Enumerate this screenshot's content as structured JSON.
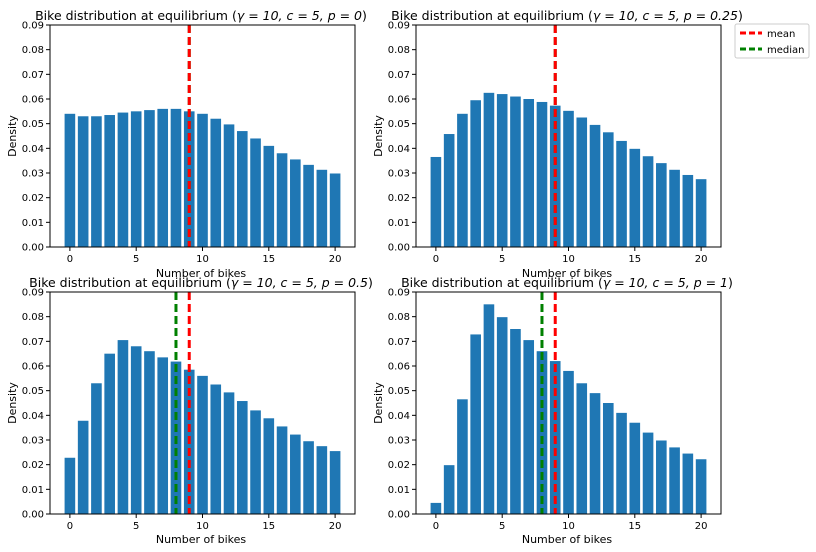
{
  "colors": {
    "bars": "#1f77b4",
    "mean": "#ff0000",
    "median": "#008000",
    "axes": "#000000"
  },
  "legend": {
    "placement": "outside-top-right",
    "items": [
      "mean",
      "median"
    ]
  },
  "chart_data": [
    {
      "type": "bar",
      "title": "Bike distribution at equilibrium ($\\gamma = 10, c = 5, p = 0$)",
      "title_prefix": "Bike distribution at equilibrium (",
      "title_math": "γ = 10, c = 5, p = 0",
      "xlabel": "Number of bikes",
      "ylabel": "Density",
      "ylim": [
        0,
        0.09
      ],
      "xlim": [
        -1.5,
        21.5
      ],
      "x_ticks": [
        0,
        5,
        10,
        15,
        20
      ],
      "y_ticks": [
        0,
        0.01,
        0.02,
        0.03,
        0.04,
        0.05,
        0.06,
        0.07,
        0.08,
        0.09
      ],
      "grid": false,
      "categories": [
        0,
        1,
        2,
        3,
        4,
        5,
        6,
        7,
        8,
        9,
        10,
        11,
        12,
        13,
        14,
        15,
        16,
        17,
        18,
        19,
        20
      ],
      "values": [
        0.054,
        0.053,
        0.053,
        0.0535,
        0.0545,
        0.055,
        0.0555,
        0.056,
        0.056,
        0.055,
        0.054,
        0.052,
        0.0497,
        0.047,
        0.044,
        0.041,
        0.038,
        0.0355,
        0.0333,
        0.0313,
        0.0298
      ],
      "mean": 9.0,
      "median": 9.0
    },
    {
      "type": "bar",
      "title": "Bike distribution at equilibrium ($\\gamma = 10, c = 5, p = 0.25$)",
      "title_prefix": "Bike distribution at equilibrium (",
      "title_math": "γ = 10, c = 5, p = 0.25",
      "xlabel": "Number of bikes",
      "ylabel": "Density",
      "ylim": [
        0,
        0.09
      ],
      "xlim": [
        -1.5,
        21.5
      ],
      "x_ticks": [
        0,
        5,
        10,
        15,
        20
      ],
      "y_ticks": [
        0,
        0.01,
        0.02,
        0.03,
        0.04,
        0.05,
        0.06,
        0.07,
        0.08,
        0.09
      ],
      "grid": false,
      "categories": [
        0,
        1,
        2,
        3,
        4,
        5,
        6,
        7,
        8,
        9,
        10,
        11,
        12,
        13,
        14,
        15,
        16,
        17,
        18,
        19,
        20
      ],
      "values": [
        0.0365,
        0.0458,
        0.054,
        0.0595,
        0.0625,
        0.062,
        0.061,
        0.06,
        0.0588,
        0.0573,
        0.0552,
        0.0525,
        0.0495,
        0.0465,
        0.043,
        0.0398,
        0.0368,
        0.034,
        0.0313,
        0.0292,
        0.0275
      ],
      "mean": 9.0,
      "median": 9.0
    },
    {
      "type": "bar",
      "title": "Bike distribution at equilibrium ($\\gamma = 10, c = 5, p = 0.5$)",
      "title_prefix": "Bike distribution at equilibrium (",
      "title_math": "γ = 10, c = 5, p = 0.5",
      "xlabel": "Number of bikes",
      "ylabel": "Density",
      "ylim": [
        0,
        0.09
      ],
      "xlim": [
        -1.5,
        21.5
      ],
      "x_ticks": [
        0,
        5,
        10,
        15,
        20
      ],
      "y_ticks": [
        0,
        0.01,
        0.02,
        0.03,
        0.04,
        0.05,
        0.06,
        0.07,
        0.08,
        0.09
      ],
      "grid": false,
      "categories": [
        0,
        1,
        2,
        3,
        4,
        5,
        6,
        7,
        8,
        9,
        10,
        11,
        12,
        13,
        14,
        15,
        16,
        17,
        18,
        19,
        20
      ],
      "values": [
        0.0228,
        0.0378,
        0.053,
        0.065,
        0.0705,
        0.068,
        0.066,
        0.0635,
        0.0618,
        0.0585,
        0.056,
        0.0525,
        0.0493,
        0.0458,
        0.042,
        0.0388,
        0.0355,
        0.0322,
        0.0295,
        0.0275,
        0.0255
      ],
      "mean": 9.0,
      "median": 8.0
    },
    {
      "type": "bar",
      "title": "Bike distribution at equilibrium ($\\gamma = 10, c = 5, p = 1$)",
      "title_prefix": "Bike distribution at equilibrium (",
      "title_math": "γ = 10, c = 5, p = 1",
      "xlabel": "Number of bikes",
      "ylabel": "Density",
      "ylim": [
        0,
        0.09
      ],
      "xlim": [
        -1.5,
        21.5
      ],
      "x_ticks": [
        0,
        5,
        10,
        15,
        20
      ],
      "y_ticks": [
        0,
        0.01,
        0.02,
        0.03,
        0.04,
        0.05,
        0.06,
        0.07,
        0.08,
        0.09
      ],
      "grid": false,
      "categories": [
        0,
        1,
        2,
        3,
        4,
        5,
        6,
        7,
        8,
        9,
        10,
        11,
        12,
        13,
        14,
        15,
        16,
        17,
        18,
        19,
        20
      ],
      "values": [
        0.0045,
        0.0198,
        0.0465,
        0.0728,
        0.085,
        0.0798,
        0.075,
        0.0705,
        0.066,
        0.062,
        0.058,
        0.053,
        0.049,
        0.045,
        0.041,
        0.037,
        0.033,
        0.0298,
        0.027,
        0.0245,
        0.0222
      ],
      "mean": 9.0,
      "median": 8.0
    }
  ]
}
